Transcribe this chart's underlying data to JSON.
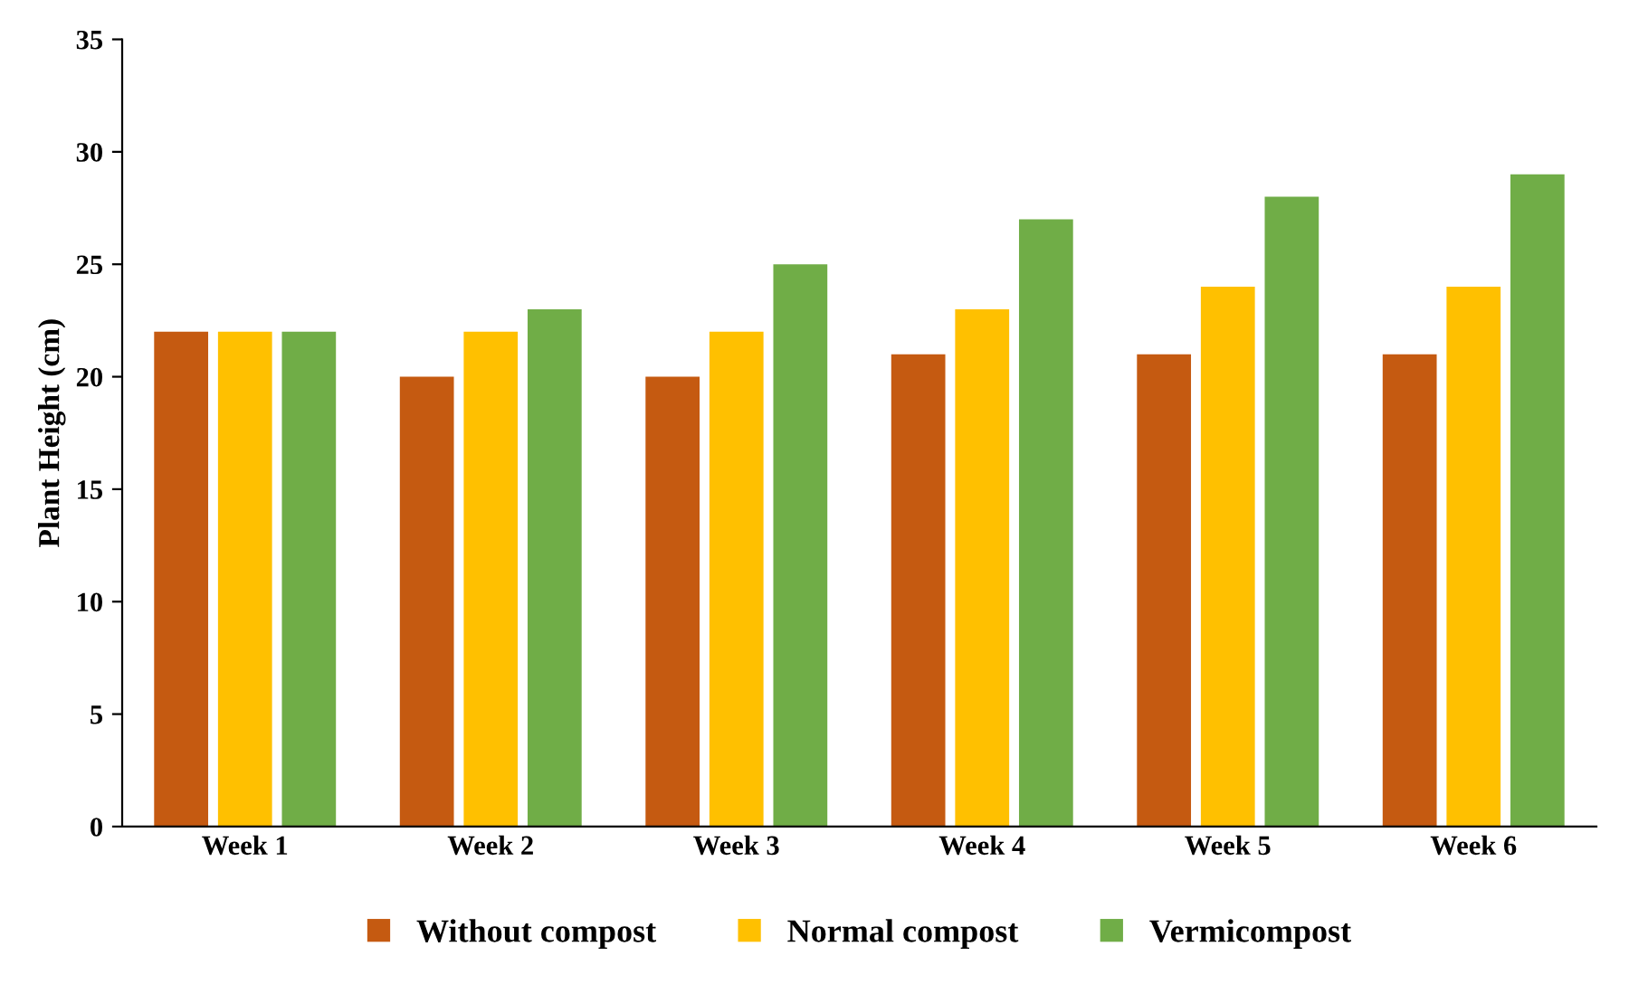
{
  "chart_data": {
    "type": "bar",
    "ylabel": "Plant Height (cm)",
    "categories": [
      "Week 1",
      "Week 2",
      "Week 3",
      "Week 4",
      "Week 5",
      "Week 6"
    ],
    "series": [
      {
        "name": "Without compost",
        "color": "#c55a11",
        "values": [
          22,
          20,
          20,
          21,
          21,
          21
        ]
      },
      {
        "name": "Normal compost",
        "color": "#ffc000",
        "values": [
          22,
          22,
          22,
          23,
          24,
          24
        ]
      },
      {
        "name": "Vermicompost",
        "color": "#70ad47",
        "values": [
          22,
          23,
          25,
          27,
          28,
          29
        ]
      }
    ],
    "ylim": [
      0,
      35
    ],
    "yticks": [
      0,
      5,
      10,
      15,
      20,
      25,
      30,
      35
    ],
    "grid": false,
    "legend": "bottom"
  }
}
